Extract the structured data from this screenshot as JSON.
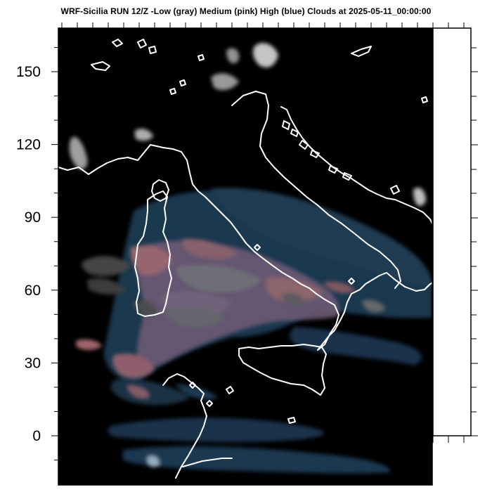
{
  "title": "WRF-Sicilia RUN 12/Z -Low (gray) Medium (pink) High (blue) Clouds at 2025-05-11_00:00:00",
  "y_axis": {
    "ticks": [
      0,
      30,
      60,
      90,
      120,
      150
    ],
    "tick_labels": [
      "0",
      "30",
      "60",
      "90",
      "120",
      "150"
    ],
    "range": [
      -18,
      168
    ]
  },
  "legend": {
    "low": "gray",
    "medium": "pink",
    "high": "blue"
  },
  "colors": {
    "background": "#000000",
    "coastline": "#ffffff",
    "low_cloud": "#8a8a8a",
    "medium_cloud": "#b06a72",
    "high_cloud": "#1c3b52"
  }
}
